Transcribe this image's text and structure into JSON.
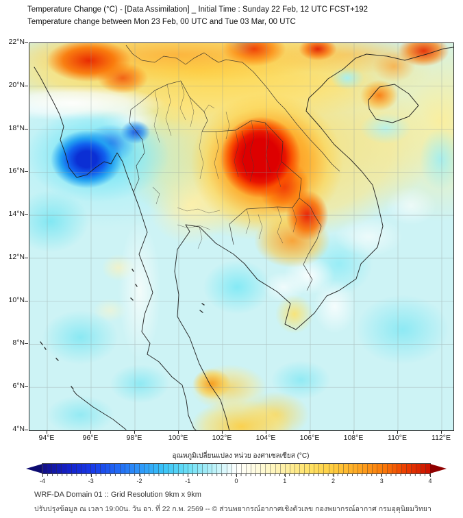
{
  "header": {
    "title": "Temperature Change (°C) - [Data Assimilation] _ Initial Time : Sunday 22 Feb, 12 UTC FCST+192",
    "subtitle": "Temperature change between Mon 23 Feb, 00 UTC and Tue 03 Mar, 00 UTC"
  },
  "map": {
    "y_tick_labels": [
      "22°N",
      "20°N",
      "18°N",
      "16°N",
      "14°N",
      "12°N",
      "10°N",
      "8°N",
      "6°N",
      "4°N"
    ],
    "x_tick_labels": [
      "94°E",
      "96°E",
      "98°E",
      "100°E",
      "102°E",
      "104°E",
      "106°E",
      "108°E",
      "110°E",
      "112°E"
    ]
  },
  "colorbar": {
    "label": "อุณหภูมิเปลี่ยนแปลง หน่วย องศาเซลเซียส (°C)",
    "tick_labels": [
      "-4",
      "-3",
      "-2",
      "-1",
      "0",
      "1",
      "2",
      "3",
      "4"
    ],
    "range": [
      -4,
      4
    ],
    "segments": 80,
    "extend": "both",
    "under_color": "#0c0a70",
    "over_color": "#8f0000",
    "stops": [
      "#120f86",
      "#1420c8",
      "#1838e8",
      "#2064f4",
      "#2e96fa",
      "#38c4f8",
      "#6ce0f6",
      "#b4f0f8",
      "#ffffff",
      "#fffbd8",
      "#fff0a4",
      "#ffe266",
      "#ffcc3e",
      "#ffa722",
      "#fb7b08",
      "#ed3b00",
      "#c81000"
    ]
  },
  "footer": {
    "line1": "WRF-DA Domain 01 :: Grid Resolution 9km x 9km",
    "line2": "ปรับปรุงข้อมูล ณ เวลา 19:00น. วัน อา. ที่ 22 ก.พ. 2569 -- © ส่วนพยากรณ์อากาศเชิงตัวเลข กองพยากรณ์อากาศ กรมอุตุนิยมวิทยา"
  },
  "chart_data": {
    "type": "heatmap",
    "title": "Temperature Change (°C) - [Data Assimilation] _ Initial Time : Sunday 22 Feb, 12 UTC FCST+192",
    "subtitle": "Temperature change between Mon 23 Feb, 00 UTC and Tue 03 Mar, 00 UTC",
    "x_axis": {
      "unit": "°E",
      "ticks": [
        94,
        96,
        98,
        100,
        102,
        104,
        106,
        108,
        110,
        112
      ],
      "range_approx": [
        93.2,
        112.5
      ]
    },
    "y_axis": {
      "unit": "°N",
      "ticks": [
        22,
        20,
        18,
        16,
        14,
        12,
        10,
        8,
        6,
        4
      ],
      "range": [
        4,
        22
      ]
    },
    "colorbar": {
      "label": "อุณหภูมิเปลี่ยนแปลง หน่วย องศาเซลเซียส (°C)",
      "unit": "°C",
      "range": [
        -4,
        4
      ],
      "tick_step": 1,
      "extend": "both"
    },
    "anomaly_centers": [
      {
        "region": "northern Myanmar (top-left)",
        "lon": 95.2,
        "lat": 21.3,
        "value_c": 3.5
      },
      {
        "region": "northern Vietnam (top edge)",
        "lon": 102.8,
        "lat": 21.9,
        "value_c": 3.0
      },
      {
        "region": "Gulf of Tonkin coast (top edge)",
        "lon": 106.8,
        "lat": 21.9,
        "value_c": 3.0
      },
      {
        "region": "Guangdong coast (top-right)",
        "lon": 111.2,
        "lat": 21.8,
        "value_c": 3.0
      },
      {
        "region": "central Laos / NE Thailand",
        "lon": 103.8,
        "lat": 16.6,
        "value_c": 4.0
      },
      {
        "region": "southern Laos - Vietnam border",
        "lon": 106.2,
        "lat": 14.0,
        "value_c": 3.5
      },
      {
        "region": "Cambodia",
        "lon": 104.8,
        "lat": 12.8,
        "value_c": 2.5
      },
      {
        "region": "Hainan island",
        "lon": 109.8,
        "lat": 19.3,
        "value_c": 2.5
      },
      {
        "region": "southern Thailand",
        "lon": 100.7,
        "lat": 6.6,
        "value_c": 2.0
      },
      {
        "region": "Myanmar coast / Irrawaddy",
        "lon": 95.7,
        "lat": 16.7,
        "value_c": -3.5
      },
      {
        "region": "Salween valley, Myanmar",
        "lon": 97.9,
        "lat": 17.9,
        "value_c": -3.0
      },
      {
        "region": "Andaman Sea",
        "lon": 95.0,
        "lat": 9.0,
        "value_c": -1.0
      },
      {
        "region": "Gulf of Thailand",
        "lon": 101.5,
        "lat": 10.5,
        "value_c": -1.0
      },
      {
        "region": "South China Sea",
        "lon": 109.0,
        "lat": 8.0,
        "value_c": -1.0
      }
    ]
  }
}
